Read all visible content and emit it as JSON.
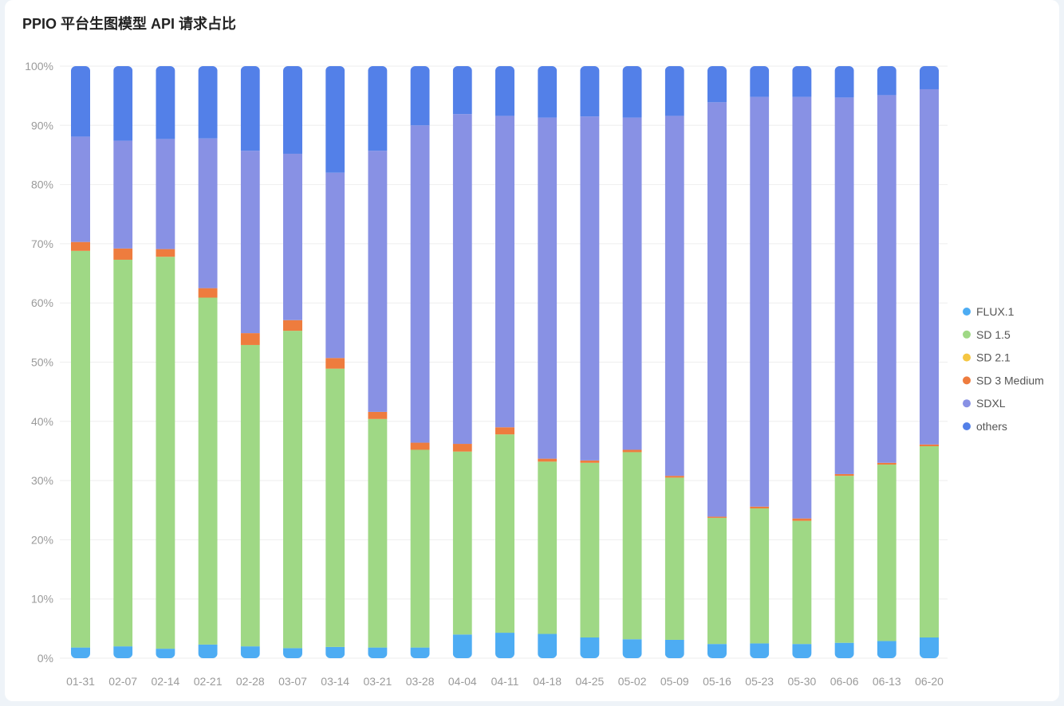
{
  "chart_data": {
    "type": "bar",
    "stacked": true,
    "title": "PPIO 平台生图模型 API 请求占比",
    "xlabel": "",
    "ylabel": "",
    "ylim": [
      0,
      100
    ],
    "yticks": [
      "0%",
      "10%",
      "20%",
      "30%",
      "40%",
      "50%",
      "60%",
      "70%",
      "80%",
      "90%",
      "100%"
    ],
    "categories": [
      "01-31",
      "02-07",
      "02-14",
      "02-21",
      "02-28",
      "03-07",
      "03-14",
      "03-21",
      "03-28",
      "04-04",
      "04-11",
      "04-18",
      "04-25",
      "05-02",
      "05-09",
      "05-16",
      "05-23",
      "05-30",
      "06-06",
      "06-13",
      "06-20"
    ],
    "legend_position": "right",
    "grid": true,
    "series": [
      {
        "name": "FLUX.1",
        "color": "#4dacf3",
        "values": [
          1.8,
          2.0,
          1.6,
          2.3,
          2.0,
          1.7,
          1.9,
          1.8,
          1.8,
          4.0,
          4.3,
          4.1,
          3.5,
          3.2,
          3.1,
          2.4,
          2.5,
          2.4,
          2.6,
          2.9,
          3.5
        ]
      },
      {
        "name": "SD 1.5",
        "color": "#9fd885",
        "values": [
          67.0,
          65.3,
          66.2,
          58.6,
          50.9,
          53.6,
          47.0,
          38.6,
          33.4,
          30.9,
          33.5,
          29.1,
          29.5,
          31.6,
          27.4,
          21.3,
          22.8,
          20.8,
          28.2,
          29.8,
          32.3
        ]
      },
      {
        "name": "SD 2.1",
        "color": "#f5c642",
        "values": [
          0,
          0,
          0,
          0,
          0,
          0,
          0,
          0,
          0,
          0,
          0,
          0,
          0,
          0,
          0,
          0,
          0,
          0,
          0,
          0,
          0
        ]
      },
      {
        "name": "SD 3 Medium",
        "color": "#ee7c3e",
        "values": [
          1.5,
          1.9,
          1.3,
          1.6,
          2.0,
          1.8,
          1.8,
          1.2,
          1.2,
          1.3,
          1.2,
          0.5,
          0.4,
          0.4,
          0.3,
          0.2,
          0.3,
          0.4,
          0.3,
          0.3,
          0.3
        ]
      },
      {
        "name": "SDXL",
        "color": "#8891e4",
        "values": [
          17.8,
          18.2,
          18.6,
          25.3,
          30.8,
          28.1,
          31.3,
          44.1,
          53.6,
          55.7,
          52.6,
          57.6,
          58.1,
          56.1,
          60.8,
          70.0,
          69.2,
          71.2,
          63.6,
          62.1,
          60.0
        ]
      },
      {
        "name": "others",
        "color": "#5380e8",
        "values": [
          11.9,
          12.6,
          12.3,
          12.2,
          14.3,
          14.8,
          18.0,
          14.3,
          10.0,
          8.1,
          8.4,
          8.7,
          8.5,
          8.7,
          8.4,
          6.1,
          5.2,
          5.2,
          5.3,
          4.9,
          3.9
        ]
      }
    ]
  }
}
